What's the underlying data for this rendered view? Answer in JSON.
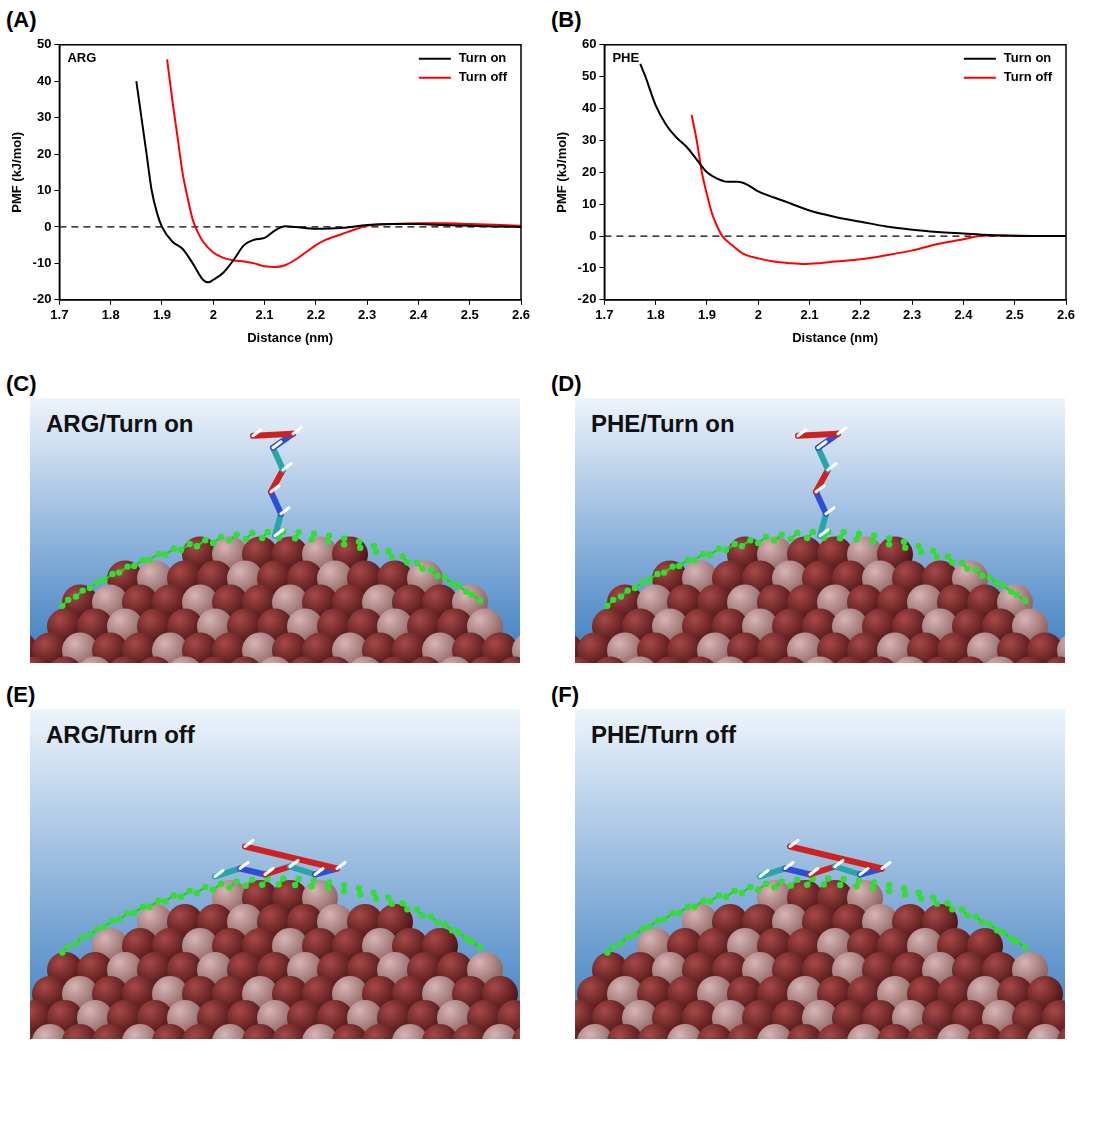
{
  "chart_data": [
    {
      "panel": "(A)",
      "type": "line",
      "title": "ARG",
      "x_label": "Distance (nm)",
      "y_label": "PMF (kJ/mol)",
      "xlim": [
        1.7,
        2.6
      ],
      "xticks": [
        1.7,
        1.8,
        1.9,
        2.0,
        2.1,
        2.2,
        2.3,
        2.4,
        2.5,
        2.6
      ],
      "ylim": [
        -20,
        50
      ],
      "yticks": [
        -20,
        -10,
        0,
        10,
        20,
        30,
        40,
        50
      ],
      "grid": false,
      "legend": "upper right",
      "reference_lines": [
        {
          "y": 0,
          "line_style": "dashed",
          "color": "#000000"
        }
      ],
      "series": [
        {
          "name": "Turn on",
          "color": "#000000",
          "line_style": "solid",
          "x": [
            1.85,
            1.86,
            1.87,
            1.88,
            1.89,
            1.9,
            1.92,
            1.94,
            1.96,
            1.98,
            1.99,
            2.0,
            2.02,
            2.04,
            2.06,
            2.08,
            2.1,
            2.12,
            2.14,
            2.16,
            2.2,
            2.25,
            2.3,
            2.35,
            2.4,
            2.45,
            2.5,
            2.55,
            2.6
          ],
          "values": [
            40,
            30,
            20,
            10,
            4,
            0,
            -4,
            -6,
            -10,
            -14.5,
            -15.2,
            -14.5,
            -12.5,
            -9,
            -5,
            -3.5,
            -3,
            -1,
            0.2,
            0,
            -0.5,
            -0.3,
            0.5,
            0.8,
            0.8,
            0.5,
            0.3,
            0.1,
            0
          ]
        },
        {
          "name": "Turn off",
          "color": "#ff0000",
          "line_style": "solid",
          "x": [
            1.91,
            1.92,
            1.93,
            1.94,
            1.95,
            1.96,
            1.97,
            1.98,
            2.0,
            2.02,
            2.04,
            2.06,
            2.08,
            2.1,
            2.12,
            2.14,
            2.16,
            2.18,
            2.2,
            2.22,
            2.25,
            2.28,
            2.3,
            2.35,
            2.4,
            2.45,
            2.5,
            2.55,
            2.6
          ],
          "values": [
            46,
            35,
            25,
            15,
            8,
            2,
            -1.5,
            -4,
            -7,
            -8.5,
            -9.2,
            -9.5,
            -10,
            -10.8,
            -11,
            -10.5,
            -9,
            -7,
            -5,
            -3.5,
            -2,
            -0.5,
            0.3,
            0.8,
            1,
            1,
            0.8,
            0.6,
            0.3
          ]
        }
      ]
    },
    {
      "panel": "(B)",
      "type": "line",
      "title": "PHE",
      "x_label": "Distance (nm)",
      "y_label": "PMF (kJ/mol)",
      "xlim": [
        1.7,
        2.6
      ],
      "xticks": [
        1.7,
        1.8,
        1.9,
        2.0,
        2.1,
        2.2,
        2.3,
        2.4,
        2.5,
        2.6
      ],
      "ylim": [
        -20,
        60
      ],
      "yticks": [
        -20,
        -10,
        0,
        10,
        20,
        30,
        40,
        50,
        60
      ],
      "grid": false,
      "legend": "upper right",
      "reference_lines": [
        {
          "y": 0,
          "line_style": "dashed",
          "color": "#000000"
        }
      ],
      "series": [
        {
          "name": "Turn on",
          "color": "#000000",
          "line_style": "solid",
          "x": [
            1.77,
            1.78,
            1.8,
            1.82,
            1.84,
            1.86,
            1.88,
            1.9,
            1.92,
            1.94,
            1.96,
            1.98,
            2.0,
            2.05,
            2.1,
            2.15,
            2.2,
            2.25,
            2.3,
            2.35,
            2.4,
            2.45,
            2.5,
            2.55,
            2.6
          ],
          "values": [
            54,
            50,
            41,
            35,
            31,
            28,
            24,
            20,
            18,
            17,
            17,
            16,
            14,
            11,
            8,
            6,
            4.5,
            3,
            2,
            1.3,
            0.8,
            0.3,
            0.1,
            0,
            0
          ]
        },
        {
          "name": "Turn off",
          "color": "#ff0000",
          "line_style": "solid",
          "x": [
            1.87,
            1.88,
            1.89,
            1.9,
            1.91,
            1.92,
            1.93,
            1.95,
            1.97,
            2.0,
            2.03,
            2.06,
            2.09,
            2.12,
            2.15,
            2.2,
            2.25,
            2.3,
            2.35,
            2.4,
            2.43,
            2.45,
            2.5,
            2.55,
            2.6
          ],
          "values": [
            38,
            30,
            20,
            13,
            7,
            3,
            0,
            -3,
            -5.5,
            -7,
            -8,
            -8.5,
            -8.8,
            -8.5,
            -8,
            -7.3,
            -6,
            -4.5,
            -2.5,
            -1,
            0,
            0.2,
            0.1,
            0,
            0
          ]
        }
      ]
    }
  ],
  "panels": [
    {
      "letter": "(C)",
      "label": "ARG/Turn on"
    },
    {
      "letter": "(D)",
      "label": "PHE/Turn on"
    },
    {
      "letter": "(E)",
      "label": "ARG/Turn off"
    },
    {
      "letter": "(F)",
      "label": "PHE/Turn off"
    }
  ]
}
